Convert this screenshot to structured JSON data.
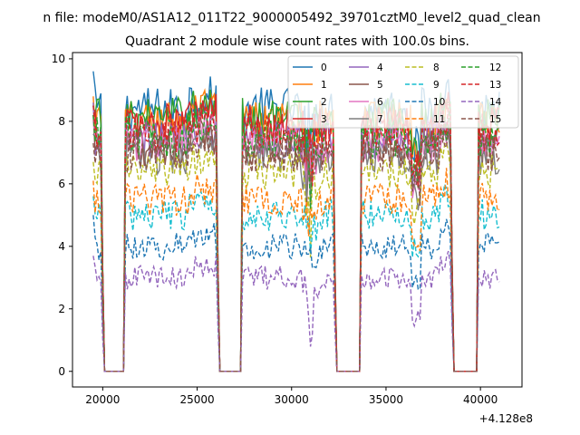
{
  "chart_data": {
    "type": "line",
    "suptitle": "n file: modeM0/AS1A12_011T22_9000005492_39701cztM0_level2_quad_clean",
    "title": "Quadrant 2 module wise count rates with 100.0s bins.",
    "xlabel": "",
    "ylabel": "",
    "x_offset_label": "+4.128e8",
    "xlim": [
      18400,
      42200
    ],
    "ylim": [
      -0.5,
      10.2
    ],
    "xticks": [
      20000,
      25000,
      30000,
      35000,
      40000
    ],
    "yticks": [
      0,
      2,
      4,
      6,
      8,
      10
    ],
    "legend_position": "upper right",
    "legend_columns": 4,
    "grid": false,
    "gaps": [
      [
        20100,
        21100
      ],
      [
        26200,
        27300
      ],
      [
        32400,
        33600
      ],
      [
        38600,
        39800
      ]
    ],
    "series": [
      {
        "name": "0",
        "color": "#1f77b4",
        "dash": "solid",
        "level": 8.4,
        "start": 9.6
      },
      {
        "name": "1",
        "color": "#ff7f0e",
        "dash": "solid",
        "level": 8.0,
        "start": 8.8
      },
      {
        "name": "2",
        "color": "#2ca02c",
        "dash": "solid",
        "level": 8.1,
        "start": 8.5
      },
      {
        "name": "3",
        "color": "#d62728",
        "dash": "solid",
        "level": 7.9,
        "start": 8.3
      },
      {
        "name": "4",
        "color": "#9467bd",
        "dash": "solid",
        "level": 7.4,
        "start": 8.6
      },
      {
        "name": "5",
        "color": "#8c564b",
        "dash": "solid",
        "level": 7.2,
        "start": 8.2
      },
      {
        "name": "6",
        "color": "#e377c2",
        "dash": "solid",
        "level": 7.3,
        "start": 8.0
      },
      {
        "name": "7",
        "color": "#7f7f7f",
        "dash": "solid",
        "level": 6.9,
        "start": 7.6
      },
      {
        "name": "8",
        "color": "#bcbd22",
        "dash": "dashed",
        "level": 6.4,
        "start": 6.7
      },
      {
        "name": "9",
        "color": "#17becf",
        "dash": "dashed",
        "level": 5.0,
        "start": 5.6
      },
      {
        "name": "10",
        "color": "#1f77b4",
        "dash": "dashed",
        "level": 4.0,
        "start": 5.0
      },
      {
        "name": "11",
        "color": "#ff7f0e",
        "dash": "dashed",
        "level": 5.5,
        "start": 6.1
      },
      {
        "name": "12",
        "color": "#2ca02c",
        "dash": "dashed",
        "level": 7.5,
        "start": 8.2
      },
      {
        "name": "13",
        "color": "#d62728",
        "dash": "dashed",
        "level": 7.6,
        "start": 8.5
      },
      {
        "name": "14",
        "color": "#9467bd",
        "dash": "dashed",
        "level": 3.0,
        "start": 3.7
      },
      {
        "name": "15",
        "color": "#8c564b",
        "dash": "dashed",
        "level": 7.0,
        "start": 7.3
      }
    ]
  }
}
